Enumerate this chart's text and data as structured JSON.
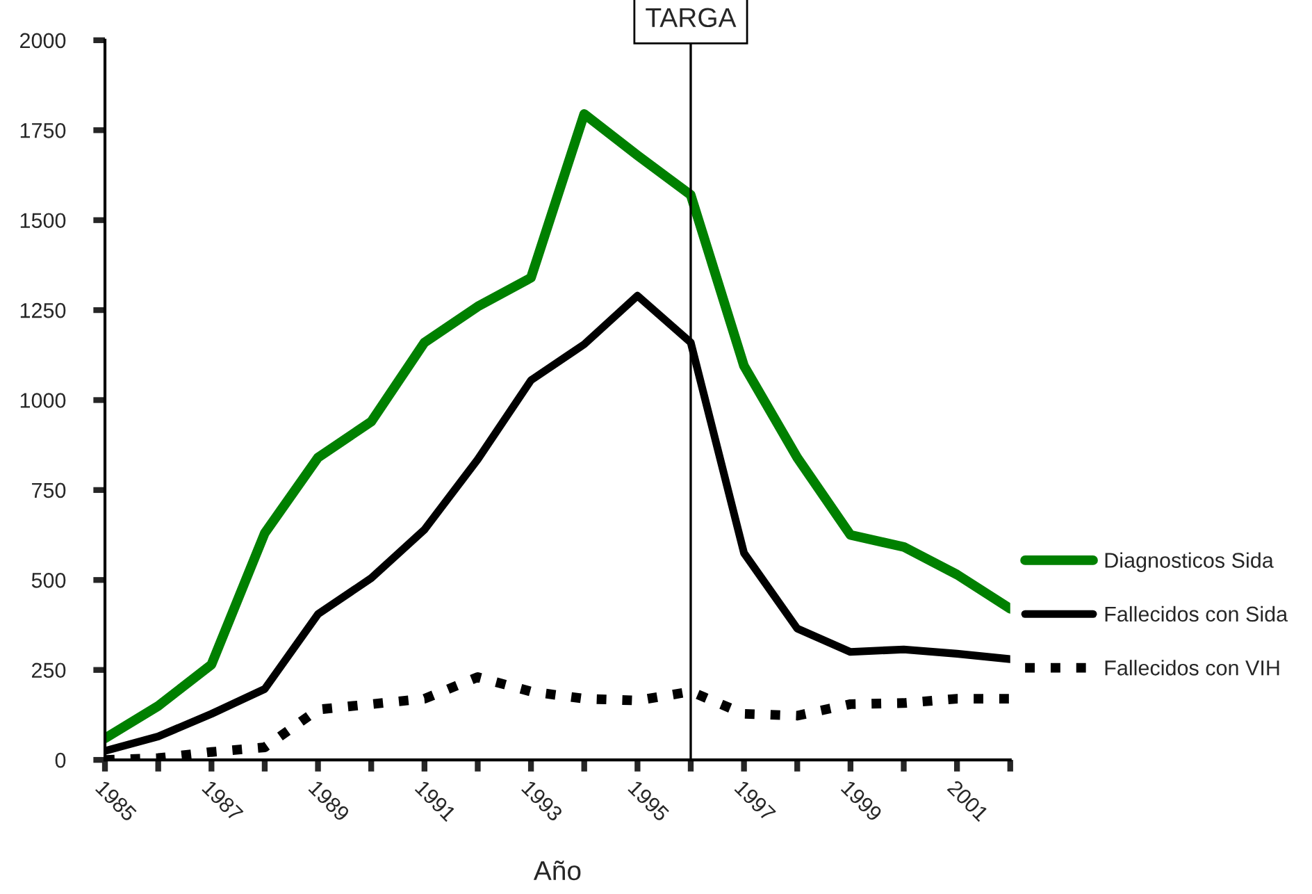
{
  "chart_data": {
    "type": "line",
    "xlabel": "Año",
    "x": [
      1985,
      1986,
      1987,
      1988,
      1989,
      1990,
      1991,
      1992,
      1993,
      1994,
      1995,
      1996,
      1997,
      1998,
      1999,
      2000,
      2001,
      2002
    ],
    "series": [
      {
        "name": "Diagnosticos Sida",
        "color": "#008000",
        "line_style": "solid",
        "values": [
          60,
          150,
          265,
          630,
          840,
          940,
          1160,
          1260,
          1340,
          1795,
          1680,
          1570,
          1095,
          840,
          625,
          592,
          515,
          420
        ]
      },
      {
        "name": "Fallecidos con Sida",
        "color": "#000000",
        "line_style": "solid",
        "values": [
          25,
          65,
          128,
          197,
          405,
          505,
          640,
          835,
          1055,
          1155,
          1290,
          1160,
          575,
          365,
          300,
          307,
          295,
          280
        ]
      },
      {
        "name": "Fallecidos con VIH",
        "color": "#000000",
        "line_style": "dotted",
        "values": [
          0,
          5,
          22,
          35,
          140,
          155,
          170,
          230,
          190,
          170,
          165,
          190,
          128,
          123,
          155,
          158,
          170,
          170
        ]
      }
    ],
    "xlim": [
      1985,
      2002
    ],
    "xticks": [
      1985,
      {
        "value": 1986,
        "label": null
      },
      1987,
      {
        "value": 1988,
        "label": null
      },
      1989,
      {
        "value": 1990,
        "label": null
      },
      1991,
      {
        "value": 1992,
        "label": null
      },
      1993,
      {
        "value": 1994,
        "label": null
      },
      1995,
      {
        "value": 1996,
        "label": null
      },
      1997,
      {
        "value": 1998,
        "label": null
      },
      1999,
      {
        "value": 2000,
        "label": null
      },
      2001,
      {
        "value": 2002,
        "label": null
      }
    ],
    "ylim": [
      0,
      2000
    ],
    "yticks": [
      0,
      250,
      500,
      750,
      1000,
      1250,
      1500,
      1750,
      2000
    ],
    "ref_lines": [
      {
        "axis": "x",
        "value": 1996,
        "label": "TARGA",
        "color": "#000000"
      }
    ],
    "grid": false,
    "legend": "right",
    "marker": "none"
  }
}
